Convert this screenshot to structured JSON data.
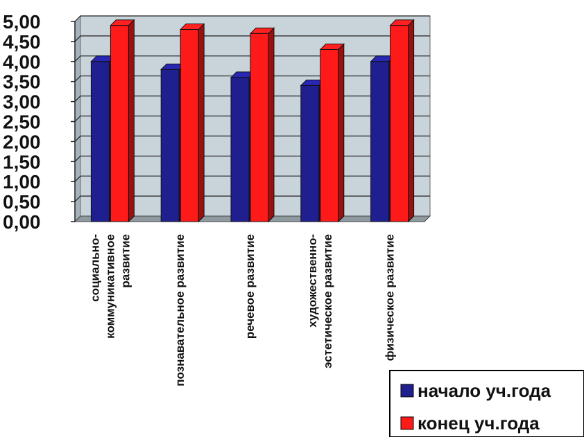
{
  "chart_data": {
    "type": "bar",
    "title": "",
    "xlabel": "",
    "ylabel": "",
    "ylim": [
      0,
      5
    ],
    "yticks": [
      "0,00",
      "0,50",
      "1,00",
      "1,50",
      "2,00",
      "2,50",
      "3,00",
      "3,50",
      "4,00",
      "4,50",
      "5,00"
    ],
    "grid": true,
    "legend_position": "bottom-right",
    "categories": [
      [
        "социально-",
        "коммуникативное",
        "развитие"
      ],
      [
        "познавательное развитие"
      ],
      [
        "речевое развитие"
      ],
      [
        "художественно-",
        "эстетическое развитие"
      ],
      [
        "физическое развитие"
      ]
    ],
    "series": [
      {
        "name": "начало уч.года",
        "color": "#1f1f8f",
        "values": [
          4.0,
          3.8,
          3.6,
          3.4,
          4.0
        ]
      },
      {
        "name": "конец уч.года",
        "color": "#ff1a1a",
        "values": [
          4.9,
          4.8,
          4.7,
          4.3,
          4.9
        ]
      }
    ],
    "colors": {
      "wall": "#c9d4da",
      "wall_dark": "#a5b3ba",
      "gridline": "#222222"
    }
  }
}
